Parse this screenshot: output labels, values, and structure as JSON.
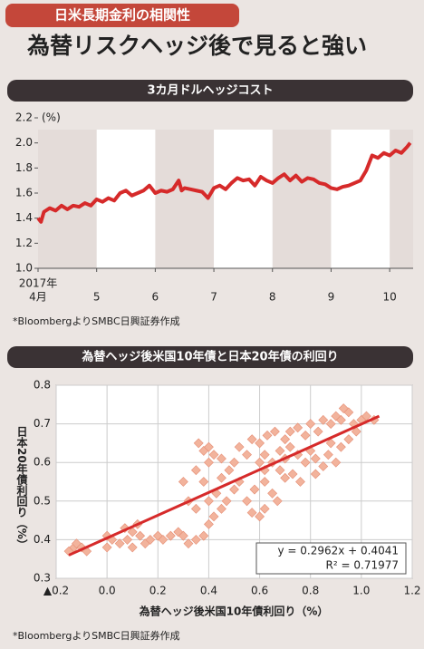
{
  "header": {
    "tag": "日米長期金利の相関性",
    "title": "為替リスクヘッジ後で見ると強い"
  },
  "chart_data": [
    {
      "type": "line",
      "title": "3カ月ドルヘッジコスト",
      "yunit": "(%)",
      "year": "2017年",
      "note": "*BloombergよりSMBC日興証券作成",
      "xlim": [
        4,
        10.4
      ],
      "xticks": [
        {
          "value": 4,
          "label": "4月"
        },
        5,
        6,
        7,
        8,
        9,
        10
      ],
      "ylim": [
        1.0,
        2.2
      ],
      "yticks": [
        {
          "value": 1.0,
          "label": "1.0"
        },
        1.2,
        1.4,
        1.6,
        1.8,
        {
          "value": 2.0,
          "label": "2.0"
        },
        2.2
      ],
      "series": [
        {
          "color": "#d62a2a",
          "x": [
            4.0,
            4.05,
            4.1,
            4.2,
            4.3,
            4.4,
            4.5,
            4.6,
            4.7,
            4.8,
            4.9,
            5.0,
            5.1,
            5.2,
            5.3,
            5.4,
            5.5,
            5.6,
            5.7,
            5.8,
            5.9,
            6.0,
            6.1,
            6.2,
            6.3,
            6.4,
            6.45,
            6.5,
            6.6,
            6.7,
            6.8,
            6.9,
            7.0,
            7.1,
            7.2,
            7.3,
            7.4,
            7.5,
            7.6,
            7.7,
            7.8,
            7.9,
            8.0,
            8.1,
            8.2,
            8.3,
            8.4,
            8.5,
            8.6,
            8.7,
            8.8,
            8.9,
            9.0,
            9.1,
            9.2,
            9.3,
            9.4,
            9.5,
            9.6,
            9.7,
            9.8,
            9.9,
            10.0,
            10.1,
            10.2,
            10.3,
            10.35
          ],
          "values": [
            1.4,
            1.37,
            1.45,
            1.48,
            1.46,
            1.5,
            1.47,
            1.5,
            1.49,
            1.52,
            1.5,
            1.55,
            1.53,
            1.56,
            1.54,
            1.6,
            1.62,
            1.58,
            1.6,
            1.62,
            1.66,
            1.6,
            1.62,
            1.61,
            1.63,
            1.7,
            1.62,
            1.64,
            1.63,
            1.62,
            1.61,
            1.56,
            1.64,
            1.66,
            1.63,
            1.68,
            1.72,
            1.7,
            1.71,
            1.66,
            1.73,
            1.7,
            1.68,
            1.72,
            1.75,
            1.7,
            1.74,
            1.69,
            1.72,
            1.71,
            1.68,
            1.67,
            1.64,
            1.63,
            1.65,
            1.66,
            1.68,
            1.7,
            1.78,
            1.9,
            1.88,
            1.92,
            1.9,
            1.94,
            1.92,
            1.97,
            2.0
          ]
        }
      ]
    },
    {
      "type": "scatter",
      "title": "為替ヘッジ後米国10年債と日本20年債の利回り",
      "xlabel": "為替ヘッジ後米国10年債利回り（%）",
      "ylabel": "日本20年債利回り（%）",
      "note": "*BloombergよりSMBC日興証券作成",
      "xlim": [
        -0.2,
        1.2
      ],
      "xticks": [
        {
          "value": -0.2,
          "label": "▲0.2"
        },
        {
          "value": 0,
          "label": "0.0"
        },
        0.2,
        0.4,
        0.6,
        0.8,
        {
          "value": 1,
          "label": "1.0"
        },
        1.2
      ],
      "ylim": [
        0.3,
        0.8
      ],
      "yticks": [
        0.3,
        0.4,
        0.5,
        0.6,
        0.7,
        0.8
      ],
      "grid": true,
      "color": "#f2b39c",
      "x": [
        -0.15,
        -0.13,
        -0.12,
        -0.1,
        -0.08,
        0,
        0.02,
        0,
        0.05,
        0.07,
        0.08,
        0.1,
        0.12,
        0.1,
        0.13,
        0.15,
        0.17,
        0.2,
        0.22,
        0.25,
        0.28,
        0.3,
        0.32,
        0.35,
        0.38,
        0.4,
        0.42,
        0.45,
        0.4,
        0.43,
        0.47,
        0.5,
        0.52,
        0.55,
        0.57,
        0.6,
        0.62,
        0.58,
        0.62,
        0.65,
        0.67,
        0.45,
        0.48,
        0.4,
        0.42,
        0.45,
        0.5,
        0.55,
        0.38,
        0.36,
        0.4,
        0.35,
        0.38,
        0.3,
        0.32,
        0.35,
        0.6,
        0.62,
        0.65,
        0.68,
        0.7,
        0.72,
        0.75,
        0.78,
        0.8,
        0.82,
        0.85,
        0.87,
        0.9,
        0.6,
        0.63,
        0.66,
        0.7,
        0.72,
        0.75,
        0.78,
        0.8,
        0.83,
        0.85,
        0.88,
        0.9,
        0.92,
        0.95,
        0.93,
        0.97,
        1.0,
        1.02,
        1.05,
        0.98,
        0.95,
        0.92,
        0.88,
        0.68,
        0.7,
        0.73,
        0.76,
        0.82,
        0.52,
        0.57,
        0.62
      ],
      "y": [
        0.37,
        0.38,
        0.39,
        0.38,
        0.37,
        0.41,
        0.4,
        0.38,
        0.39,
        0.43,
        0.4,
        0.42,
        0.44,
        0.38,
        0.41,
        0.39,
        0.4,
        0.41,
        0.4,
        0.41,
        0.42,
        0.41,
        0.39,
        0.4,
        0.41,
        0.44,
        0.46,
        0.48,
        0.5,
        0.52,
        0.5,
        0.53,
        0.55,
        0.5,
        0.47,
        0.46,
        0.48,
        0.53,
        0.55,
        0.52,
        0.5,
        0.56,
        0.58,
        0.6,
        0.62,
        0.61,
        0.6,
        0.62,
        0.63,
        0.65,
        0.64,
        0.58,
        0.55,
        0.55,
        0.5,
        0.48,
        0.6,
        0.62,
        0.6,
        0.63,
        0.61,
        0.64,
        0.62,
        0.6,
        0.63,
        0.61,
        0.59,
        0.62,
        0.6,
        0.65,
        0.67,
        0.68,
        0.66,
        0.68,
        0.69,
        0.67,
        0.7,
        0.68,
        0.71,
        0.7,
        0.72,
        0.71,
        0.73,
        0.74,
        0.7,
        0.71,
        0.72,
        0.71,
        0.68,
        0.66,
        0.64,
        0.65,
        0.58,
        0.56,
        0.57,
        0.55,
        0.57,
        0.64,
        0.66,
        0.58
      ],
      "trendline": {
        "color": "#d62a2a",
        "x": [
          -0.15,
          1.07
        ],
        "y": [
          0.36,
          0.72
        ]
      },
      "annotations": [
        "y = 0.2962x + 0.4041",
        "R² = 0.71977"
      ]
    }
  ]
}
